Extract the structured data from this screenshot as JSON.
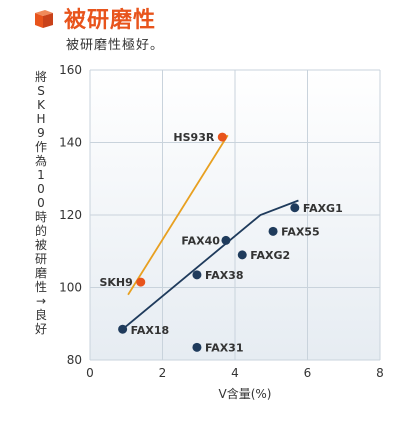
{
  "header": {
    "title": "被研磨性",
    "subtitle": "被研磨性極好。"
  },
  "colors": {
    "accent": "#e8541c",
    "orange_series": "#e8541c",
    "orange_line": "#e8a020",
    "navy_series": "#1f3b5c",
    "grid": "#c9d3dc",
    "plot_bg_top": "#ffffff",
    "plot_bg_bottom": "#e6ecf2"
  },
  "chart_data": {
    "type": "scatter",
    "title": "被研磨性",
    "xlabel": "V含量(%)",
    "ylabel": "將SKH9作為100時的被研磨性→良好",
    "xlim": [
      0,
      8
    ],
    "ylim": [
      80,
      160
    ],
    "xticks": [
      0,
      2,
      4,
      6,
      8
    ],
    "yticks": [
      80,
      100,
      120,
      140,
      160
    ],
    "grid": true,
    "series": [
      {
        "points": [
          {
            "label": "HS93R",
            "x": 3.65,
            "y": 141.5
          },
          {
            "label": "SKH9",
            "x": 1.4,
            "y": 101.5
          }
        ],
        "trend": [
          [
            1.05,
            98
          ],
          [
            3.8,
            142
          ]
        ]
      },
      {
        "points": [
          {
            "label": "FAXG1",
            "x": 5.65,
            "y": 122
          },
          {
            "label": "FAX55",
            "x": 5.05,
            "y": 115.5
          },
          {
            "label": "FAX40",
            "x": 3.75,
            "y": 113
          },
          {
            "label": "FAXG2",
            "x": 4.2,
            "y": 109
          },
          {
            "label": "FAX38",
            "x": 2.95,
            "y": 103.5
          },
          {
            "label": "FAX18",
            "x": 0.9,
            "y": 88.5
          },
          {
            "label": "FAX31",
            "x": 2.95,
            "y": 83.5
          }
        ],
        "trend": [
          [
            0.9,
            88.5
          ],
          [
            4.7,
            120
          ],
          [
            5.75,
            124
          ]
        ]
      }
    ]
  }
}
